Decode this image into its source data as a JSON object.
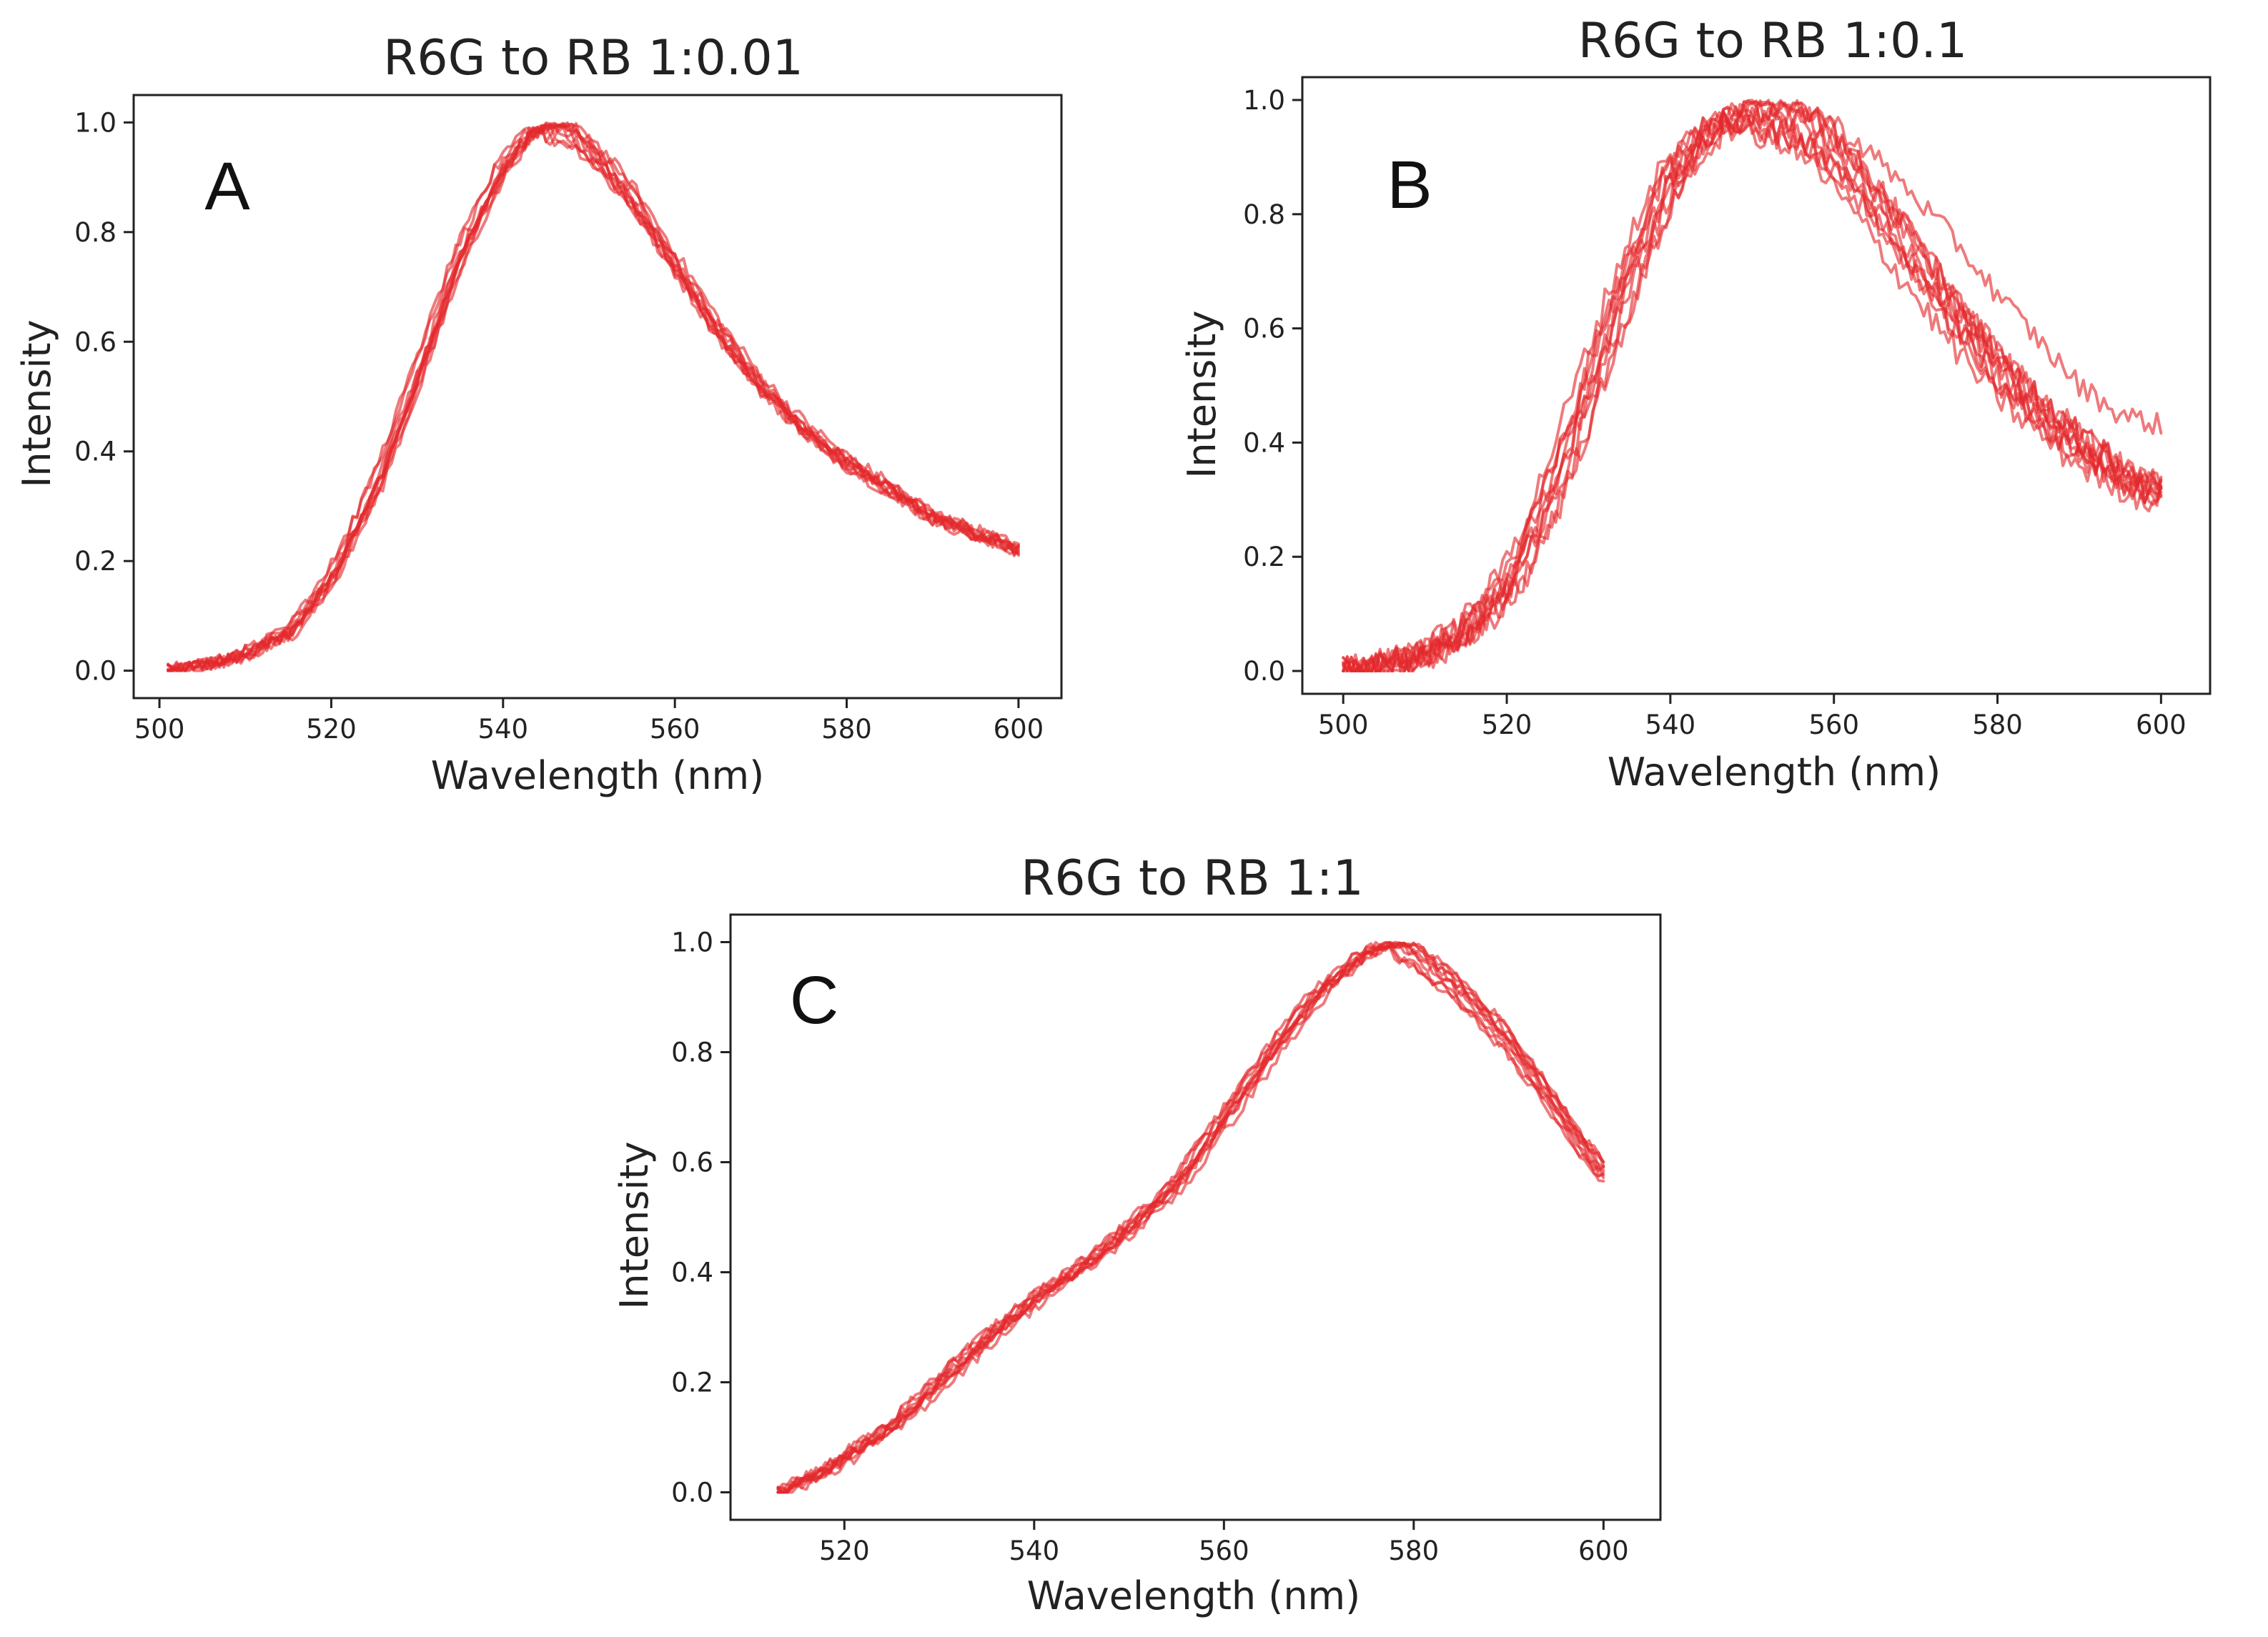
{
  "figure": {
    "background": "#ffffff",
    "line_color": "#e3282b"
  },
  "chart_data": [
    {
      "id": "A",
      "type": "line",
      "panel_label": "A",
      "title": "R6G to RB 1:0.01",
      "xlabel": "Wavelength (nm)",
      "ylabel": "Intensity",
      "xlim": [
        497,
        605
      ],
      "ylim": [
        -0.05,
        1.05
      ],
      "xticks": [
        500,
        520,
        540,
        560,
        580,
        600
      ],
      "xtick_labels": [
        "500",
        "520",
        "540",
        "560",
        "580",
        "600"
      ],
      "yticks": [
        0.0,
        0.2,
        0.4,
        0.6,
        0.8,
        1.0
      ],
      "ytick_labels": [
        "0.0",
        "0.2",
        "0.4",
        "0.6",
        "0.8",
        "1.0"
      ],
      "grid": false,
      "curves_shown": 10,
      "mean_curve": {
        "x": [
          501,
          505,
          510,
          515,
          520,
          525,
          530,
          535,
          540,
          543,
          545,
          548,
          550,
          555,
          560,
          565,
          570,
          575,
          580,
          585,
          590,
          595,
          600
        ],
        "y": [
          0.0,
          0.01,
          0.03,
          0.07,
          0.17,
          0.33,
          0.54,
          0.76,
          0.92,
          0.98,
          0.99,
          0.98,
          0.95,
          0.86,
          0.74,
          0.62,
          0.52,
          0.44,
          0.38,
          0.33,
          0.28,
          0.25,
          0.22
        ]
      },
      "spread": {
        "rise_shift_nm": 0.8,
        "fall_shift_nm": 0.9,
        "amp_spread": 0.03,
        "noise": 0.012
      }
    },
    {
      "id": "B",
      "type": "line",
      "panel_label": "B",
      "title": "R6G to RB 1:0.1",
      "xlabel": "Wavelength (nm)",
      "ylabel": "Intensity",
      "xlim": [
        495,
        606
      ],
      "ylim": [
        -0.04,
        1.04
      ],
      "xticks": [
        500,
        520,
        540,
        560,
        580,
        600
      ],
      "xtick_labels": [
        "500",
        "520",
        "540",
        "560",
        "580",
        "600"
      ],
      "yticks": [
        0.0,
        0.2,
        0.4,
        0.6,
        0.8,
        1.0
      ],
      "ytick_labels": [
        "0.0",
        "0.2",
        "0.4",
        "0.6",
        "0.8",
        "1.0"
      ],
      "grid": false,
      "curves_shown": 10,
      "mean_curve": {
        "x": [
          500,
          505,
          510,
          515,
          520,
          525,
          530,
          535,
          540,
          545,
          550,
          555,
          560,
          565,
          570,
          575,
          580,
          585,
          590,
          595,
          600
        ],
        "y": [
          0.0,
          0.01,
          0.03,
          0.07,
          0.15,
          0.3,
          0.5,
          0.7,
          0.87,
          0.95,
          0.98,
          0.96,
          0.9,
          0.81,
          0.71,
          0.61,
          0.52,
          0.45,
          0.39,
          0.34,
          0.31
        ]
      },
      "spread": {
        "rise_shift_nm": 1.8,
        "fall_shift_nm": 2.2,
        "amp_spread": 0.04,
        "noise": 0.025
      },
      "outlier_curve": {
        "x": [
          540,
          545,
          550,
          555,
          560,
          565,
          570,
          575,
          580,
          585,
          590,
          595,
          600
        ],
        "y": [
          0.85,
          0.93,
          0.97,
          0.99,
          0.96,
          0.9,
          0.83,
          0.75,
          0.66,
          0.58,
          0.5,
          0.45,
          0.43
        ]
      }
    },
    {
      "id": "C",
      "type": "line",
      "panel_label": "C",
      "title": "R6G to RB 1:1",
      "xlabel": "Wavelength (nm)",
      "ylabel": "Intensity",
      "xlim": [
        508,
        606
      ],
      "ylim": [
        -0.05,
        1.05
      ],
      "xticks": [
        520,
        540,
        560,
        580,
        600
      ],
      "xtick_labels": [
        "520",
        "540",
        "560",
        "580",
        "600"
      ],
      "yticks": [
        0.0,
        0.2,
        0.4,
        0.6,
        0.8,
        1.0
      ],
      "ytick_labels": [
        "0.0",
        "0.2",
        "0.4",
        "0.6",
        "0.8",
        "1.0"
      ],
      "grid": false,
      "curves_shown": 10,
      "mean_curve": {
        "x": [
          513,
          518,
          525,
          530,
          535,
          540,
          545,
          550,
          555,
          560,
          565,
          570,
          575,
          578,
          580,
          585,
          590,
          595,
          600
        ],
        "y": [
          0.0,
          0.04,
          0.12,
          0.2,
          0.28,
          0.35,
          0.41,
          0.48,
          0.56,
          0.68,
          0.8,
          0.91,
          0.98,
          1.0,
          0.98,
          0.91,
          0.82,
          0.7,
          0.58
        ]
      },
      "spread": {
        "rise_shift_nm": 1.2,
        "fall_shift_nm": 0.8,
        "amp_spread": 0.025,
        "noise": 0.01
      }
    }
  ]
}
